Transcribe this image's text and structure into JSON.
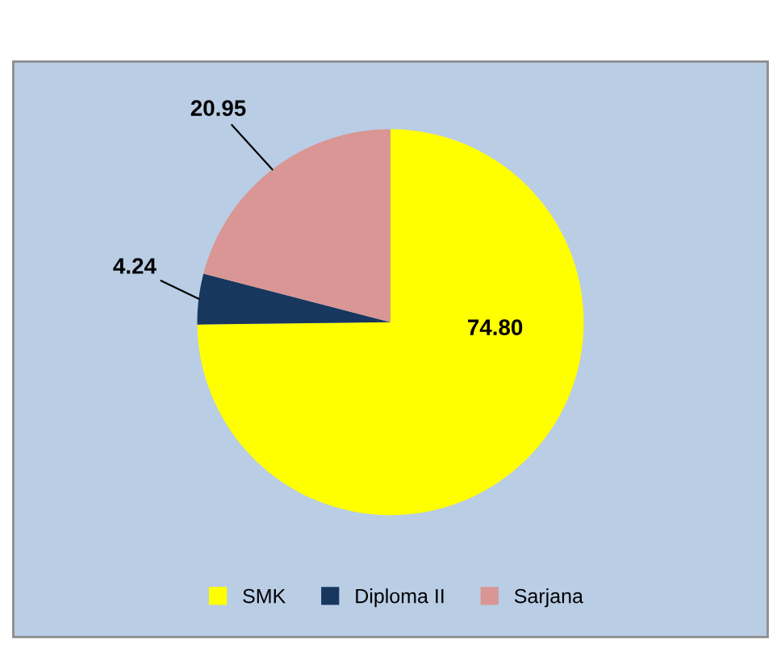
{
  "chart_data": {
    "type": "pie",
    "categories": [
      "SMK",
      "Diploma II",
      "Sarjana"
    ],
    "values": [
      74.8,
      4.24,
      20.95
    ],
    "colors": [
      "#ffff00",
      "#17375e",
      "#d99694"
    ],
    "value_labels": [
      "74.80",
      "4.24",
      "20.95"
    ],
    "legend": "bottom"
  }
}
